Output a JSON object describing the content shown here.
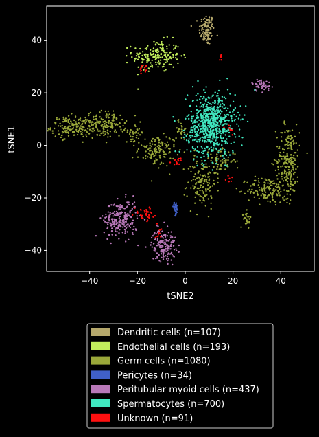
{
  "chart_data": {
    "type": "scatter",
    "title": "",
    "xlabel": "tSNE2",
    "ylabel": "tSNE1",
    "xlim": [
      -58,
      54
    ],
    "ylim": [
      -48,
      53
    ],
    "xticks": [
      -40,
      -20,
      0,
      20,
      40
    ],
    "yticks": [
      -40,
      -20,
      0,
      20,
      40
    ],
    "grid": false,
    "legend_placement": "bottom",
    "background": "#000000",
    "series": [
      {
        "name": "Dendritic cells (n=107)",
        "color": "#b5a86c",
        "clusters": [
          {
            "cx": 9,
            "cy": 44,
            "sx": 1.6,
            "sy": 3.0,
            "n": 107
          }
        ]
      },
      {
        "name": "Endothelial cells (n=193)",
        "color": "#c2ee5c",
        "clusters": [
          {
            "cx": -12,
            "cy": 34,
            "sx": 5.0,
            "sy": 3.0,
            "n": 193
          }
        ]
      },
      {
        "name": "Germ cells (n=1080)",
        "color": "#9aa83a",
        "clusters": [
          {
            "cx": -47,
            "cy": 7,
            "sx": 4.5,
            "sy": 2.0,
            "n": 170
          },
          {
            "cx": -33,
            "cy": 8,
            "sx": 4.0,
            "sy": 2.5,
            "n": 140
          },
          {
            "cx": -12,
            "cy": -2,
            "sx": 4.0,
            "sy": 3.0,
            "n": 120
          },
          {
            "cx": -2,
            "cy": 6,
            "sx": 1.5,
            "sy": 2.0,
            "n": 30
          },
          {
            "cx": 7,
            "cy": -14,
            "sx": 3.0,
            "sy": 5.0,
            "n": 140
          },
          {
            "cx": 34,
            "cy": -17,
            "sx": 4.0,
            "sy": 2.5,
            "n": 130
          },
          {
            "cx": 43,
            "cy": -6,
            "sx": 2.5,
            "sy": 7.0,
            "n": 230
          },
          {
            "cx": 26,
            "cy": -28,
            "sx": 0.8,
            "sy": 1.5,
            "n": 25
          },
          {
            "cx": -21,
            "cy": 5,
            "sx": 2.0,
            "sy": 1.5,
            "n": 30
          },
          {
            "cx": 15,
            "cy": -6,
            "sx": 3.0,
            "sy": 2.0,
            "n": 65
          }
        ]
      },
      {
        "name": "Pericytes (n=34)",
        "color": "#4060c8",
        "clusters": [
          {
            "cx": -4,
            "cy": -24,
            "sx": 0.5,
            "sy": 1.2,
            "n": 34
          }
        ]
      },
      {
        "name": "Peritubular myoid cells (n=437)",
        "color": "#b878b8",
        "clusters": [
          {
            "cx": -27,
            "cy": -28,
            "sx": 3.5,
            "sy": 3.5,
            "n": 230
          },
          {
            "cx": -9,
            "cy": -38,
            "sx": 2.5,
            "sy": 3.0,
            "n": 160
          },
          {
            "cx": 32,
            "cy": 23,
            "sx": 2.0,
            "sy": 1.2,
            "n": 47
          }
        ]
      },
      {
        "name": "Spermatocytes (n=700)",
        "color": "#40e8c0",
        "clusters": [
          {
            "cx": 11,
            "cy": 8,
            "sx": 5.0,
            "sy": 6.0,
            "n": 700
          }
        ]
      },
      {
        "name": "Unknown (n=91)",
        "color": "#ff1010",
        "clusters": [
          {
            "cx": -17,
            "cy": -26,
            "sx": 2.0,
            "sy": 1.2,
            "n": 35
          },
          {
            "cx": -18,
            "cy": 29,
            "sx": 0.8,
            "sy": 1.0,
            "n": 12
          },
          {
            "cx": -11,
            "cy": -33,
            "sx": 1.0,
            "sy": 1.5,
            "n": 10
          },
          {
            "cx": -3,
            "cy": -6,
            "sx": 1.5,
            "sy": 0.6,
            "n": 14
          },
          {
            "cx": 19,
            "cy": 6,
            "sx": 1.0,
            "sy": 1.0,
            "n": 8
          },
          {
            "cx": 19,
            "cy": -13,
            "sx": 1.0,
            "sy": 0.8,
            "n": 6
          },
          {
            "cx": 15,
            "cy": 34,
            "sx": 0.5,
            "sy": 0.8,
            "n": 6
          }
        ]
      }
    ]
  }
}
